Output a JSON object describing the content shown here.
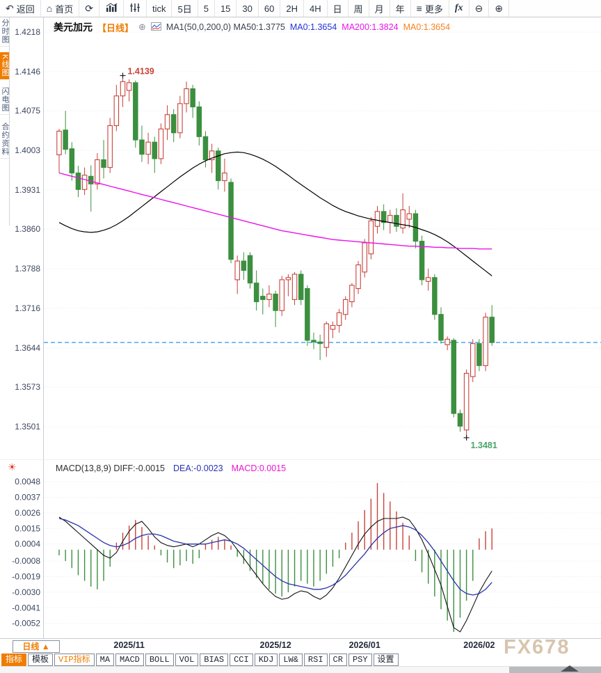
{
  "toolbar": {
    "items": [
      {
        "id": "back",
        "glyph": "↶",
        "label": "返回"
      },
      {
        "id": "home",
        "glyph": "⌂",
        "label": "首页"
      },
      {
        "id": "refresh",
        "glyph": "⟳",
        "label": ""
      },
      {
        "id": "chart-type-bars",
        "svg": "bars",
        "label": ""
      },
      {
        "id": "chart-type-candles",
        "svg": "candles",
        "label": ""
      },
      {
        "id": "timeframe-tick",
        "label": "tick"
      },
      {
        "id": "timeframe-5d",
        "label": "5日"
      },
      {
        "id": "timeframe-5",
        "label": "5"
      },
      {
        "id": "timeframe-15",
        "label": "15"
      },
      {
        "id": "timeframe-30",
        "label": "30"
      },
      {
        "id": "timeframe-60",
        "label": "60"
      },
      {
        "id": "timeframe-2h",
        "label": "2H"
      },
      {
        "id": "timeframe-4h",
        "label": "4H"
      },
      {
        "id": "timeframe-day",
        "label": "日"
      },
      {
        "id": "timeframe-week",
        "label": "周"
      },
      {
        "id": "timeframe-month",
        "label": "月"
      },
      {
        "id": "timeframe-year",
        "label": "年"
      },
      {
        "id": "more",
        "glyph": "≡",
        "label": "更多"
      },
      {
        "id": "fx",
        "label": "fx",
        "cls": "fx-item"
      },
      {
        "id": "zoom-out",
        "glyph": "⊖",
        "label": ""
      },
      {
        "id": "zoom-in",
        "glyph": "⊕",
        "label": ""
      }
    ]
  },
  "sidebar": {
    "items": [
      {
        "id": "intraday",
        "label": "分时图",
        "active": false
      },
      {
        "id": "kline",
        "label": "K线图",
        "active": true
      },
      {
        "id": "lightning",
        "label": "闪电图",
        "active": false
      },
      {
        "id": "contract-info",
        "label": "合约资料",
        "active": false
      }
    ]
  },
  "price_header": {
    "symbol": "美元加元",
    "period_tag": "【日线】",
    "plus": "⊕",
    "ma_settings": "MA1(50,0,200,0) MA50:1.3775",
    "ma0_blue": "MA0:1.3654",
    "ma200": "MA200:1.3824",
    "ma0_orange": "MA0:1.3654"
  },
  "macd_header": {
    "title_diff": "MACD(13,8,9) DIFF:-0.0015",
    "dea": "DEA:-0.0023",
    "macd": "MACD:0.0015"
  },
  "icons": {
    "indicator_settings": "☀"
  },
  "bottom": {
    "period_button": "日线 ▲",
    "tabs": [
      {
        "label": "指标",
        "state": "active"
      },
      {
        "label": "模板",
        "state": ""
      },
      {
        "label": "VIP指标",
        "state": "vip"
      },
      {
        "label": "MA",
        "state": ""
      },
      {
        "label": "MACD",
        "state": ""
      },
      {
        "label": "BOLL",
        "state": ""
      },
      {
        "label": "VOL",
        "state": ""
      },
      {
        "label": "BIAS",
        "state": ""
      },
      {
        "label": "CCI",
        "state": ""
      },
      {
        "label": "KDJ",
        "state": ""
      },
      {
        "label": "LW&",
        "state": ""
      },
      {
        "label": "RSI",
        "state": ""
      },
      {
        "label": "CR",
        "state": ""
      },
      {
        "label": "PSY",
        "state": ""
      },
      {
        "label": "设置",
        "state": ""
      }
    ]
  },
  "watermark": "FX678",
  "colors": {
    "up": "#c8423a",
    "down": "#3b8f3f",
    "ma50": "#000000",
    "ma200": "#ea12ea",
    "diff": "#111111",
    "dea": "#2733a8",
    "last_price_line": "#2196f3",
    "annotation_high": "#c8423a",
    "annotation_low": "#4ca36b",
    "tick_label": "#3c4660",
    "month_label": "#222a38",
    "grid": "#e7e7ea",
    "axis": "#c8ccd2"
  },
  "chart_data": {
    "type": "candlestick+macd",
    "title": "美元加元 日线 (USD/CAD daily)",
    "last_price": 1.3654,
    "y_ticks": [
      "1.4218",
      "1.4146",
      "1.4075",
      "1.4003",
      "1.3931",
      "1.3860",
      "1.3788",
      "1.3716",
      "1.3644",
      "1.3573",
      "1.3501"
    ],
    "price_range": {
      "max": 1.4232,
      "min": 1.3448
    },
    "x_labels": [
      {
        "label": "2025/11",
        "index": 11
      },
      {
        "label": "2025/12",
        "index": 34
      },
      {
        "label": "2026/01",
        "index": 48
      },
      {
        "label": "2026/02",
        "index": 66
      }
    ],
    "annotations": {
      "high": {
        "index": 10,
        "price": 1.4139,
        "label": "1.4139"
      },
      "low": {
        "index": 64,
        "price": 1.3481,
        "label": "1.3481"
      }
    },
    "candles": [
      [
        1.3995,
        1.4042,
        1.3962,
        1.4038
      ],
      [
        1.404,
        1.4075,
        1.3996,
        1.4005
      ],
      [
        1.4006,
        1.4018,
        1.3948,
        1.3962
      ],
      [
        1.3962,
        1.3975,
        1.3918,
        1.3932
      ],
      [
        1.3932,
        1.3972,
        1.3922,
        1.3958
      ],
      [
        1.3956,
        1.3976,
        1.3892,
        1.3942
      ],
      [
        1.3942,
        1.3998,
        1.3932,
        1.3986
      ],
      [
        1.3986,
        1.4022,
        1.3952,
        1.3972
      ],
      [
        1.3972,
        1.4062,
        1.3962,
        1.4048
      ],
      [
        1.4048,
        1.4122,
        1.4038,
        1.4102
      ],
      [
        1.4102,
        1.4139,
        1.4082,
        1.4128
      ],
      [
        1.4112,
        1.4132,
        1.4092,
        1.4126
      ],
      [
        1.4126,
        1.413,
        1.4008,
        1.4022
      ],
      [
        1.4022,
        1.4048,
        1.3982,
        1.3996
      ],
      [
        1.3996,
        1.4035,
        1.3978,
        1.4018
      ],
      [
        1.4018,
        1.4028,
        1.3962,
        1.3988
      ],
      [
        1.3988,
        1.4052,
        1.3978,
        1.4042
      ],
      [
        1.4042,
        1.4085,
        1.4022,
        1.4068
      ],
      [
        1.4068,
        1.4078,
        1.4018,
        1.4035
      ],
      [
        1.4035,
        1.4102,
        1.4025,
        1.4088
      ],
      [
        1.4088,
        1.4128,
        1.4072,
        1.4115
      ],
      [
        1.4115,
        1.4122,
        1.4062,
        1.4082
      ],
      [
        1.4082,
        1.4092,
        1.4012,
        1.4028
      ],
      [
        1.4028,
        1.4038,
        1.3972,
        1.3986
      ],
      [
        1.3986,
        1.4015,
        1.3962,
        1.4002
      ],
      [
        1.4002,
        1.4008,
        1.3932,
        1.3948
      ],
      [
        1.3948,
        1.3988,
        1.3928,
        1.3962
      ],
      [
        1.3945,
        1.3952,
        1.3798,
        1.3805
      ],
      [
        1.3768,
        1.3812,
        1.3742,
        1.3802
      ],
      [
        1.3802,
        1.3818,
        1.3768,
        1.3785
      ],
      [
        1.3812,
        1.3818,
        1.3752,
        1.3762
      ],
      [
        1.3762,
        1.3785,
        1.3712,
        1.3728
      ],
      [
        1.3738,
        1.3752,
        1.3705,
        1.3732
      ],
      [
        1.3732,
        1.3758,
        1.3718,
        1.3742
      ],
      [
        1.3742,
        1.3748,
        1.3682,
        1.3712
      ],
      [
        1.3712,
        1.3775,
        1.3702,
        1.3768
      ],
      [
        1.3768,
        1.3778,
        1.3738,
        1.3772
      ],
      [
        1.3732,
        1.3782,
        1.3722,
        1.3778
      ],
      [
        1.3778,
        1.3785,
        1.3722,
        1.3732
      ],
      [
        1.3752,
        1.3758,
        1.3648,
        1.3658
      ],
      [
        1.3658,
        1.3672,
        1.3642,
        1.3655
      ],
      [
        1.3655,
        1.3668,
        1.3622,
        1.3652
      ],
      [
        1.3645,
        1.3692,
        1.3628,
        1.3688
      ],
      [
        1.3678,
        1.3692,
        1.3662,
        1.3685
      ],
      [
        1.3685,
        1.3715,
        1.3672,
        1.3708
      ],
      [
        1.3705,
        1.3738,
        1.3695,
        1.3732
      ],
      [
        1.3728,
        1.3762,
        1.3718,
        1.3758
      ],
      [
        1.3752,
        1.3802,
        1.3742,
        1.3795
      ],
      [
        1.3782,
        1.3842,
        1.3772,
        1.3835
      ],
      [
        1.3815,
        1.3882,
        1.3805,
        1.3875
      ],
      [
        1.3865,
        1.3902,
        1.3852,
        1.3892
      ],
      [
        1.3892,
        1.3905,
        1.3858,
        1.3872
      ],
      [
        1.3872,
        1.3895,
        1.3852,
        1.3885
      ],
      [
        1.3885,
        1.3898,
        1.3855,
        1.3865
      ],
      [
        1.3862,
        1.3925,
        1.3852,
        1.3895
      ],
      [
        1.3878,
        1.3902,
        1.3862,
        1.3888
      ],
      [
        1.3888,
        1.3895,
        1.3825,
        1.3838
      ],
      [
        1.3838,
        1.3848,
        1.3758,
        1.3768
      ],
      [
        1.3765,
        1.3788,
        1.3748,
        1.3772
      ],
      [
        1.3772,
        1.3778,
        1.3695,
        1.3705
      ],
      [
        1.3705,
        1.3718,
        1.3652,
        1.3658
      ],
      [
        1.365,
        1.3665,
        1.364,
        1.366
      ],
      [
        1.3658,
        1.3662,
        1.3518,
        1.3525
      ],
      [
        1.3525,
        1.3532,
        1.3492,
        1.3502
      ],
      [
        1.3495,
        1.3605,
        1.3481,
        1.3598
      ],
      [
        1.3592,
        1.366,
        1.3582,
        1.3652
      ],
      [
        1.3652,
        1.366,
        1.3602,
        1.3612
      ],
      [
        1.3612,
        1.3708,
        1.3602,
        1.37
      ],
      [
        1.37,
        1.3722,
        1.3648,
        1.3654
      ]
    ],
    "ma50": [
      1.3872,
      1.3866,
      1.3861,
      1.3857,
      1.3855,
      1.3854,
      1.3855,
      1.3858,
      1.3862,
      1.3868,
      1.3875,
      1.3883,
      1.3892,
      1.3901,
      1.391,
      1.3919,
      1.3928,
      1.3937,
      1.3946,
      1.3955,
      1.3963,
      1.3971,
      1.3978,
      1.3984,
      1.3989,
      1.3993,
      1.3997,
      1.3999,
      1.4,
      1.3999,
      1.3996,
      1.3992,
      1.3987,
      1.3981,
      1.3974,
      1.3966,
      1.3958,
      1.3949,
      1.3941,
      1.3933,
      1.3925,
      1.3917,
      1.391,
      1.3903,
      1.3897,
      1.3892,
      1.3888,
      1.3884,
      1.3881,
      1.3878,
      1.3876,
      1.3874,
      1.3872,
      1.387,
      1.3868,
      1.3866,
      1.3863,
      1.3859,
      1.3855,
      1.385,
      1.3844,
      1.3837,
      1.3829,
      1.382,
      1.3811,
      1.3802,
      1.3793,
      1.3784,
      1.3775
    ],
    "ma200": [
      1.3962,
      1.3959,
      1.3956,
      1.3953,
      1.395,
      1.3947,
      1.3944,
      1.3941,
      1.3938,
      1.3935,
      1.3932,
      1.3929,
      1.3926,
      1.3923,
      1.392,
      1.3917,
      1.3914,
      1.3911,
      1.3908,
      1.3905,
      1.3902,
      1.3899,
      1.3896,
      1.3893,
      1.389,
      1.3887,
      1.3884,
      1.3881,
      1.3878,
      1.3875,
      1.3872,
      1.3869,
      1.3866,
      1.3863,
      1.386,
      1.3857,
      1.3855,
      1.3853,
      1.3851,
      1.3849,
      1.3847,
      1.3845,
      1.3843,
      1.3841,
      1.384,
      1.3839,
      1.3838,
      1.3837,
      1.3836,
      1.3835,
      1.3834,
      1.3833,
      1.3832,
      1.3831,
      1.383,
      1.3829,
      1.3829,
      1.3828,
      1.3828,
      1.3827,
      1.3827,
      1.3826,
      1.3826,
      1.3825,
      1.3825,
      1.3825,
      1.3824,
      1.3824,
      1.3824
    ],
    "macd": {
      "y_ticks": [
        "0.0048",
        "0.0037",
        "0.0026",
        "0.0015",
        "0.0004",
        "-0.0008",
        "-0.0019",
        "-0.0030",
        "-0.0041",
        "-0.0052"
      ],
      "value_range": {
        "max": 0.005,
        "min": -0.006
      },
      "hist": [
        -0.0004,
        -0.0008,
        -0.0013,
        -0.0018,
        -0.0022,
        -0.0026,
        -0.0028,
        -0.0022,
        -0.0012,
        0.0005,
        0.0012,
        0.0017,
        0.0021,
        0.0016,
        0.001,
        0.0003,
        -0.0004,
        -0.0009,
        -0.0013,
        -0.0011,
        -0.0008,
        -0.001,
        -0.0006,
        0.0004,
        0.0007,
        0.0009,
        0.0007,
        0.0003,
        -0.0005,
        -0.001,
        -0.0015,
        -0.002,
        -0.0024,
        -0.0028,
        -0.0031,
        -0.0033,
        -0.003,
        -0.0026,
        -0.0022,
        -0.0024,
        -0.0026,
        -0.0022,
        -0.0017,
        -0.0012,
        -0.0006,
        0.0005,
        0.0012,
        0.002,
        0.0028,
        0.0036,
        0.0047,
        0.004,
        0.0034,
        0.0027,
        0.0019,
        0.001,
        -0.0008,
        -0.0016,
        -0.0024,
        -0.0033,
        -0.0042,
        -0.005,
        -0.0058,
        -0.0048,
        -0.0036,
        -0.0022,
        0.0008,
        0.0013,
        0.0015
      ],
      "diff": [
        0.0023,
        0.002,
        0.0016,
        0.0012,
        0.0008,
        0.0004,
        0.0,
        -0.0004,
        -0.0006,
        -0.0002,
        0.0006,
        0.0013,
        0.0018,
        0.002,
        0.0015,
        0.0009,
        0.0005,
        0.0003,
        0.0002,
        0.0003,
        0.0004,
        0.0002,
        0.0004,
        0.0007,
        0.001,
        0.0012,
        0.001,
        0.0006,
        0.0,
        -0.0006,
        -0.0012,
        -0.0018,
        -0.0024,
        -0.0029,
        -0.0033,
        -0.0035,
        -0.0034,
        -0.0031,
        -0.0029,
        -0.003,
        -0.0033,
        -0.0035,
        -0.0032,
        -0.0027,
        -0.002,
        -0.0012,
        -0.0004,
        0.0004,
        0.0011,
        0.0016,
        0.002,
        0.0022,
        0.0022,
        0.0022,
        0.0023,
        0.0021,
        0.0015,
        0.0007,
        -0.0003,
        -0.0014,
        -0.0025,
        -0.004,
        -0.0055,
        -0.0058,
        -0.005,
        -0.004,
        -0.003,
        -0.0022,
        -0.0015
      ],
      "dea": [
        0.0022,
        0.0021,
        0.0019,
        0.0017,
        0.0014,
        0.0011,
        0.0008,
        0.0005,
        0.0003,
        0.0002,
        0.0003,
        0.0005,
        0.0008,
        0.001,
        0.0011,
        0.0011,
        0.001,
        0.0008,
        0.0006,
        0.0005,
        0.0004,
        0.0004,
        0.0004,
        0.0004,
        0.0005,
        0.0006,
        0.0007,
        0.0006,
        0.0004,
        0.0001,
        -0.0003,
        -0.0007,
        -0.0011,
        -0.0015,
        -0.0019,
        -0.0022,
        -0.0024,
        -0.0025,
        -0.0026,
        -0.0027,
        -0.0028,
        -0.0028,
        -0.0027,
        -0.0025,
        -0.0022,
        -0.0018,
        -0.0013,
        -0.0008,
        -0.0003,
        0.0003,
        0.0008,
        0.0012,
        0.0015,
        0.0016,
        0.0017,
        0.0016,
        0.0014,
        0.001,
        0.0005,
        -0.0001,
        -0.0008,
        -0.0015,
        -0.0022,
        -0.0028,
        -0.0031,
        -0.0032,
        -0.0031,
        -0.0028,
        -0.0023
      ]
    }
  }
}
